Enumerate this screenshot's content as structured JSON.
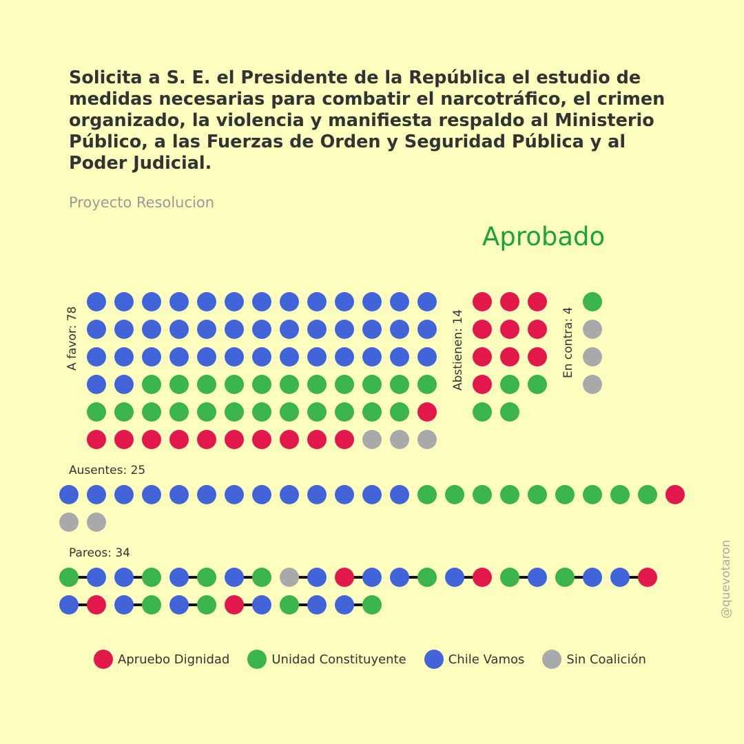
{
  "title": "Solicita a S. E. el Presidente de la República el estudio de medidas necesarias para combatir el narcotráfico, el crimen organizado, la violencia y manifiesta respaldo al Ministerio Público, a las Fuerzas de Orden y Seguridad Pública y al Poder Judicial.",
  "subtitle": "Proyecto Resolucion",
  "result": "Aprobado",
  "watermark": "@quevotaron",
  "colors": {
    "AD": "#e3194c",
    "UC": "#3ab54e",
    "CV": "#4363d8",
    "SC": "#a9a9a9",
    "result": "#1aa33a",
    "background": "#fdfdbd"
  },
  "chart_data": {
    "type": "dot-grid",
    "groups": [
      {
        "key": "favor",
        "label": "A favor: 78",
        "count": 78,
        "columns": 13,
        "sequence": [
          {
            "party": "CV",
            "count": 41
          },
          {
            "party": "UC",
            "count": 23
          },
          {
            "party": "AD",
            "count": 11
          },
          {
            "party": "SC",
            "count": 3
          }
        ]
      },
      {
        "key": "abstienen",
        "label": "Abstienen: 14",
        "count": 14,
        "columns": 3,
        "sequence": [
          {
            "party": "AD",
            "count": 10
          },
          {
            "party": "UC",
            "count": 4
          }
        ]
      },
      {
        "key": "contra",
        "label": "En contra: 4",
        "count": 4,
        "columns": 1,
        "sequence": [
          {
            "party": "UC",
            "count": 1
          },
          {
            "party": "SC",
            "count": 3
          }
        ]
      },
      {
        "key": "ausentes",
        "label": "Ausentes: 25",
        "count": 25,
        "columns": 23,
        "sequence": [
          {
            "party": "CV",
            "count": 13
          },
          {
            "party": "UC",
            "count": 9
          },
          {
            "party": "AD",
            "count": 1
          },
          {
            "party": "SC",
            "count": 2
          }
        ]
      },
      {
        "key": "pareos",
        "label": "Pareos: 34",
        "count": 34,
        "columns": 22,
        "pairs": [
          [
            "UC",
            "CV"
          ],
          [
            "CV",
            "UC"
          ],
          [
            "CV",
            "UC"
          ],
          [
            "CV",
            "UC"
          ],
          [
            "SC",
            "CV"
          ],
          [
            "AD",
            "CV"
          ],
          [
            "CV",
            "UC"
          ],
          [
            "CV",
            "AD"
          ],
          [
            "UC",
            "CV"
          ],
          [
            "UC",
            "CV"
          ],
          [
            "CV",
            "AD"
          ],
          [
            "CV",
            "AD"
          ],
          [
            "CV",
            "UC"
          ],
          [
            "CV",
            "UC"
          ],
          [
            "AD",
            "CV"
          ],
          [
            "UC",
            "CV"
          ],
          [
            "CV",
            "UC"
          ]
        ]
      }
    ],
    "legend": [
      {
        "party": "AD",
        "label": "Apruebo Dignidad"
      },
      {
        "party": "UC",
        "label": "Unidad Constituyente"
      },
      {
        "party": "CV",
        "label": "Chile Vamos"
      },
      {
        "party": "SC",
        "label": "Sin Coalición"
      }
    ]
  }
}
